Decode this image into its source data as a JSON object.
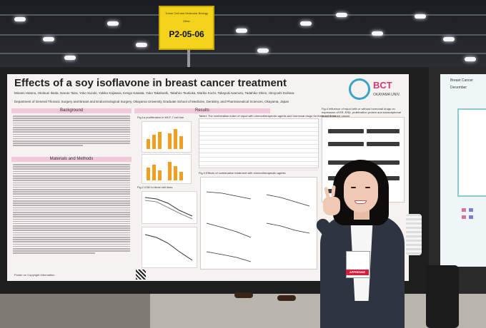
{
  "sign": {
    "line1": "Tumor Cell and Molecular Biology",
    "line2": "Other",
    "code": "P2-05-06"
  },
  "poster": {
    "title": "Effects of a soy isoflavone in breast cancer treatment",
    "authors": "Minami Hatono, Hirokuni Ikeda, Naruto Taira, Yoko Suzuki, Yukiko Kajiwara, Kengo Kawata, Yuko Takahashi, Takahiro Tsukioka, Mariko Kochi, Takayuki Iwamoto, Tadahiko Shien, Hiroyoshi Doihara",
    "affiliation": "Department of General Thoracic Surgery and Breast and Endocrinological Surgery, Okayama University Graduate School of Medicine, Dentistry, and Pharmaceutical Sciences, Okayama, Japan",
    "logo_text": "BCT",
    "university": "OKAYAMA UNIV.",
    "sections": {
      "background": "Background",
      "results": "Results",
      "methods": "Materials and Methods"
    },
    "fig1_title": "Fig.1a  proliferation in MCF-7 cell line",
    "fig2_title": "Fig.2  IC50 in three cell lines",
    "fig3_title": "Fig.3  Effects of combination treatment with chemotherapeutic agents",
    "table1_title": "Table1  The combination index of equol with chemotherapeutic agents and hormonal drugs for three cell lines",
    "fig4_title": "Fig.4  Influence of equol with or without hormonal drugs on expression of ER, ERβ, proliferation protein and transcriptional factor in breast cancer",
    "footer": "Poster on Copyright Information"
  },
  "right_poster": {
    "title_fragment": "Breast Cancer",
    "date_fragment": "December"
  },
  "badge": {
    "ribbon": "APPRENNE"
  }
}
